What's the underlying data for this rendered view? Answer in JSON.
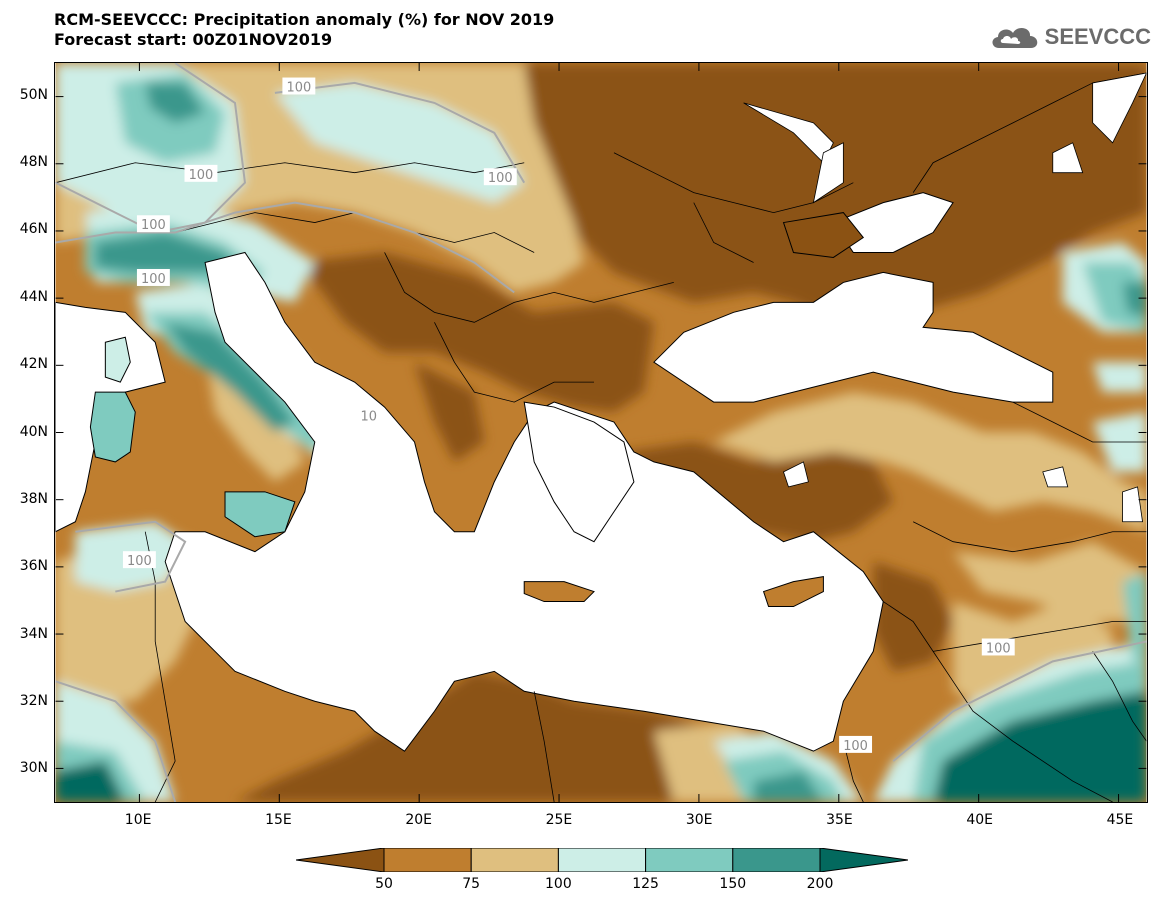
{
  "header": {
    "title_line1": "RCM-SEEVCCC: Precipitation anomaly (%) for NOV 2019",
    "title_line2": "Forecast start: 00Z01NOV2019"
  },
  "logo": {
    "text": "SEEVCCC",
    "icon": "cloud-icon",
    "color": "#6b6b6b"
  },
  "map": {
    "lon_range": [
      7,
      46
    ],
    "lat_range": [
      29,
      51
    ],
    "lat_ticks": [
      {
        "value": 50,
        "label": "50N"
      },
      {
        "value": 48,
        "label": "48N"
      },
      {
        "value": 46,
        "label": "46N"
      },
      {
        "value": 44,
        "label": "44N"
      },
      {
        "value": 42,
        "label": "42N"
      },
      {
        "value": 40,
        "label": "40N"
      },
      {
        "value": 38,
        "label": "38N"
      },
      {
        "value": 36,
        "label": "36N"
      },
      {
        "value": 34,
        "label": "34N"
      },
      {
        "value": 32,
        "label": "32N"
      },
      {
        "value": 30,
        "label": "30N"
      }
    ],
    "lon_ticks": [
      {
        "value": 10,
        "label": "10E"
      },
      {
        "value": 15,
        "label": "15E"
      },
      {
        "value": 20,
        "label": "20E"
      },
      {
        "value": 25,
        "label": "25E"
      },
      {
        "value": 30,
        "label": "30E"
      },
      {
        "value": 35,
        "label": "35E"
      },
      {
        "value": 40,
        "label": "40E"
      },
      {
        "value": 45,
        "label": "45E"
      }
    ],
    "contour_labels": [
      {
        "text": "100",
        "lon": 15.7,
        "lat": 50.3
      },
      {
        "text": "100",
        "lon": 12.2,
        "lat": 47.7
      },
      {
        "text": "100",
        "lon": 22.9,
        "lat": 47.6
      },
      {
        "text": "100",
        "lon": 10.5,
        "lat": 46.2
      },
      {
        "text": "100",
        "lon": 10.5,
        "lat": 44.6
      },
      {
        "text": "10",
        "lon": 18.2,
        "lat": 40.5
      },
      {
        "text": "100",
        "lon": 10.0,
        "lat": 36.2
      },
      {
        "text": "100",
        "lon": 40.7,
        "lat": 33.6
      },
      {
        "text": "100",
        "lon": 35.6,
        "lat": 30.7
      }
    ]
  },
  "legend": {
    "colors": [
      "#8b5213",
      "#bf7e2f",
      "#dfbf7f",
      "#cdeee7",
      "#7fcbbf",
      "#3a978c",
      "#03695e"
    ],
    "labels": [
      "50",
      "75",
      "100",
      "125",
      "150",
      "200"
    ]
  }
}
